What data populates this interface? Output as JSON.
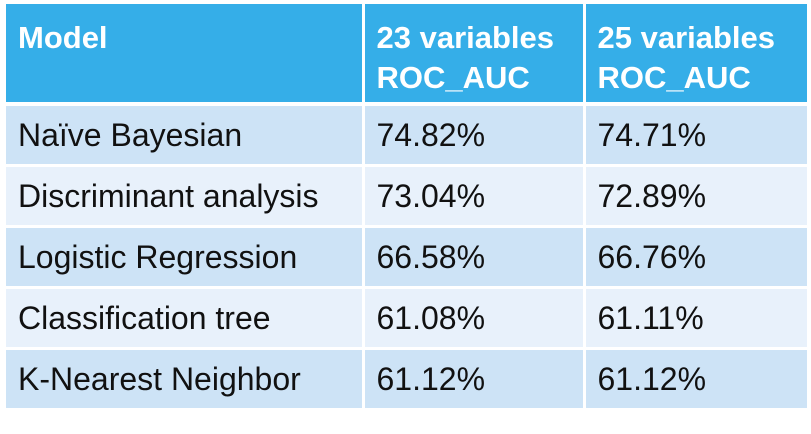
{
  "table": {
    "headers": [
      {
        "line1": "Model",
        "line2": ""
      },
      {
        "line1": "23 variables",
        "line2": "ROC_AUC"
      },
      {
        "line1": "25 variables",
        "line2": "ROC_AUC"
      }
    ],
    "rows": [
      {
        "model": "Naïve Bayesian",
        "v23": "74.82%",
        "v25": "74.71%"
      },
      {
        "model": "Discriminant analysis",
        "v23": "73.04%",
        "v25": "72.89%"
      },
      {
        "model": "Logistic Regression",
        "v23": "66.58%",
        "v25": "66.76%"
      },
      {
        "model": "Classification tree",
        "v23": "61.08%",
        "v25": "61.11%"
      },
      {
        "model": "K-Nearest Neighbor",
        "v23": "61.12%",
        "v25": "61.12%"
      }
    ]
  },
  "colors": {
    "header": "#35aee8",
    "row_odd": "#cde3f6",
    "row_even": "#e8f1fb"
  }
}
